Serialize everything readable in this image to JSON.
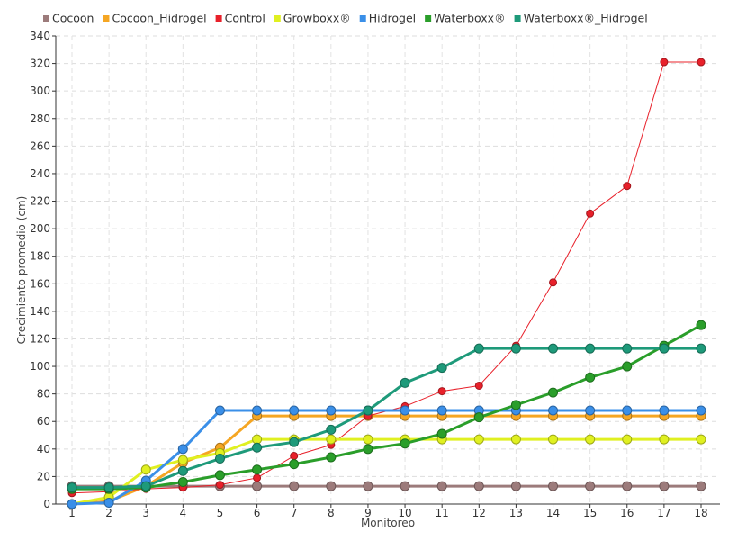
{
  "chart_data": {
    "type": "line",
    "xlabel": "Monitoreo",
    "ylabel": "Crecimiento promedio (cm)",
    "categories": [
      "1",
      "2",
      "3",
      "4",
      "5",
      "6",
      "7",
      "8",
      "9",
      "10",
      "11",
      "12",
      "13",
      "14",
      "15",
      "16",
      "17",
      "18"
    ],
    "ylim": [
      0,
      340
    ],
    "yticks": [
      0,
      20,
      40,
      60,
      80,
      100,
      120,
      140,
      160,
      180,
      200,
      220,
      240,
      260,
      280,
      300,
      320,
      340
    ],
    "grid": true,
    "legend_position": "top-left",
    "series": [
      {
        "name": "Cocoon",
        "color": "#9c7b7b",
        "values": [
          13,
          13,
          13,
          13,
          13,
          13,
          13,
          13,
          13,
          13,
          13,
          13,
          13,
          13,
          13,
          13,
          13,
          13
        ]
      },
      {
        "name": "Cocoon_Hidrogel",
        "color": "#f5a623",
        "values": [
          0,
          2,
          13,
          30,
          41,
          64,
          64,
          64,
          64,
          64,
          64,
          64,
          64,
          64,
          64,
          64,
          64,
          64
        ]
      },
      {
        "name": "Control",
        "color": "#e8202a",
        "values": [
          8,
          9,
          11,
          12,
          14,
          19,
          35,
          43,
          64,
          71,
          82,
          86,
          115,
          161,
          211,
          231,
          321,
          321
        ]
      },
      {
        "name": "Growboxx®",
        "color": "#e0f020",
        "values": [
          0,
          5,
          25,
          32,
          37,
          47,
          47,
          47,
          47,
          47,
          47,
          47,
          47,
          47,
          47,
          47,
          47,
          47
        ]
      },
      {
        "name": "Hidrogel",
        "color": "#3a8fe8",
        "values": [
          0,
          1,
          17,
          40,
          68,
          68,
          68,
          68,
          68,
          68,
          68,
          68,
          68,
          68,
          68,
          68,
          68,
          68
        ]
      },
      {
        "name": "Waterboxx®",
        "color": "#2a9e2a",
        "values": [
          11,
          11,
          12,
          16,
          21,
          25,
          29,
          34,
          40,
          44,
          51,
          63,
          72,
          81,
          92,
          100,
          115,
          130
        ]
      },
      {
        "name": "Waterboxx®_Hidrogel",
        "color": "#1e9a7a",
        "values": [
          12,
          12,
          13,
          24,
          33,
          41,
          45,
          54,
          68,
          88,
          99,
          113,
          113,
          113,
          113,
          113,
          113,
          113
        ]
      }
    ]
  }
}
